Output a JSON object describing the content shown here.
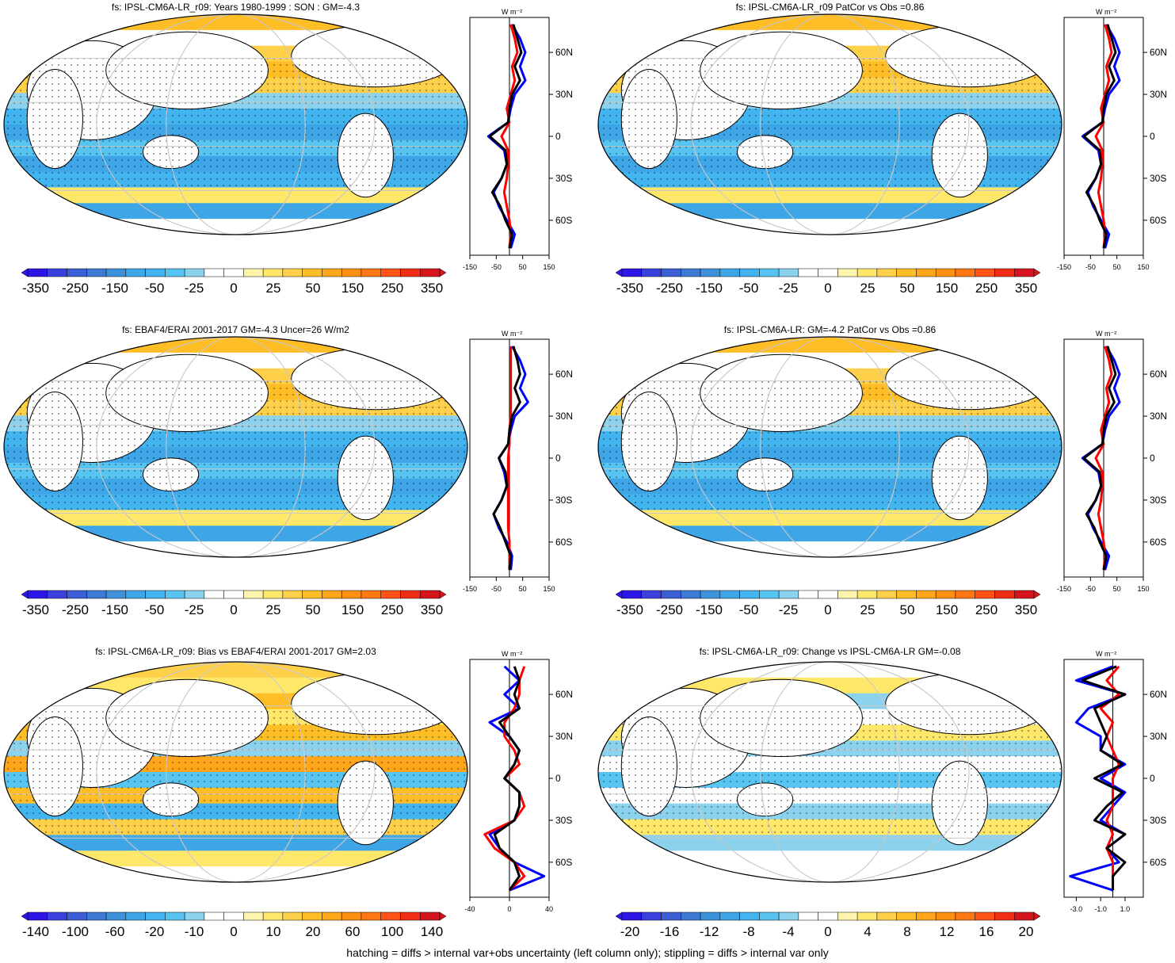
{
  "footer": "hatching = diffs > internal var+obs uncertainty (left column only); stippling = diffs > internal var only",
  "colors": {
    "blue_line": "#0000ff",
    "red_line": "#ff0000",
    "black_line": "#000000",
    "land": "#ffffff",
    "scale_main": [
      "#2d17e6",
      "#3a3fe0",
      "#3c5fd8",
      "#3d7ad6",
      "#3d92db",
      "#3ea6e6",
      "#42b4ef",
      "#57c4f2",
      "#8ad2ee",
      "#ffffff",
      "#ffffff",
      "#fff4ad",
      "#ffe76a",
      "#ffd14a",
      "#ffbd26",
      "#ffa61a",
      "#ff8f10",
      "#ff7814",
      "#ff5216",
      "#f02e16",
      "#d6141c"
    ]
  },
  "panels": [
    {
      "title": "fs: IPSL-CM6A-LR_r09: Years 1980-1999 : SON : GM=-4.3",
      "colorbar_labels": [
        "-350",
        "-250",
        "-150",
        "-50",
        "-25",
        "0",
        "25",
        "50",
        "150",
        "250",
        "350"
      ],
      "zonal_ticks": [
        "-150",
        "-50",
        "50",
        "150"
      ],
      "zonal_xlim": [
        -150,
        150
      ],
      "units": "W m⁻²",
      "lat_labels": [
        "60N",
        "30N",
        "0",
        "30S",
        "60S"
      ]
    },
    {
      "title": "fs: IPSL-CM6A-LR_r09 PatCor vs Obs =0.86",
      "colorbar_labels": [
        "-350",
        "-250",
        "-150",
        "-50",
        "-25",
        "0",
        "25",
        "50",
        "150",
        "250",
        "350"
      ],
      "zonal_ticks": [
        "-150",
        "-50",
        "50",
        "150"
      ],
      "zonal_xlim": [
        -150,
        150
      ],
      "units": "W m⁻²",
      "lat_labels": [
        "60N",
        "30N",
        "0",
        "30S",
        "60S"
      ]
    },
    {
      "title": "fs: EBAF4/ERAI 2001-2017 GM=-4.3 Uncer=26 W/m2",
      "colorbar_labels": [
        "-350",
        "-250",
        "-150",
        "-50",
        "-25",
        "0",
        "25",
        "50",
        "150",
        "250",
        "350"
      ],
      "zonal_ticks": [
        "-150",
        "-50",
        "50",
        "150"
      ],
      "zonal_xlim": [
        -150,
        150
      ],
      "units": "W m⁻²",
      "lat_labels": [
        "60N",
        "30N",
        "0",
        "30S",
        "60S"
      ]
    },
    {
      "title": "fs: IPSL-CM6A-LR: GM=-4.2 PatCor vs Obs =0.86",
      "colorbar_labels": [
        "-350",
        "-250",
        "-150",
        "-50",
        "-25",
        "0",
        "25",
        "50",
        "150",
        "250",
        "350"
      ],
      "zonal_ticks": [
        "-150",
        "-50",
        "50",
        "150"
      ],
      "zonal_xlim": [
        -150,
        150
      ],
      "units": "W m⁻²",
      "lat_labels": [
        "60N",
        "30N",
        "0",
        "30S",
        "60S"
      ]
    },
    {
      "title": "fs: IPSL-CM6A-LR_r09: Bias vs EBAF4/ERAI 2001-2017  GM=2.03",
      "colorbar_labels": [
        "-140",
        "-100",
        "-60",
        "-20",
        "-10",
        "0",
        "10",
        "20",
        "60",
        "100",
        "140"
      ],
      "zonal_ticks": [
        "-40",
        "0",
        "40"
      ],
      "zonal_xlim": [
        -40,
        40
      ],
      "units": "W m⁻²",
      "lat_labels": [
        "60N",
        "30N",
        "0",
        "30S",
        "60S"
      ]
    },
    {
      "title": "fs: IPSL-CM6A-LR_r09: Change vs IPSL-CM6A-LR GM=-0.08",
      "colorbar_labels": [
        "-20",
        "-16",
        "-12",
        "-8",
        "-4",
        "0",
        "4",
        "8",
        "12",
        "16",
        "20"
      ],
      "zonal_ticks": [
        "-3.0",
        "-1.0",
        "1.0"
      ],
      "zonal_xlim": [
        -4,
        2.5
      ],
      "units": "W m⁻²",
      "lat_labels": [
        "60N",
        "30N",
        "0",
        "30S",
        "60S"
      ]
    }
  ],
  "chart_data": [
    {
      "type": "heatmap",
      "title": "fs: IPSL-CM6A-LR_r09: Years 1980-1999 : SON : GM=-4.3",
      "zonal_mean_profile": {
        "lat": [
          80,
          70,
          60,
          50,
          40,
          30,
          20,
          10,
          0,
          -10,
          -20,
          -30,
          -40,
          -50,
          -60,
          -70,
          -80
        ],
        "series": [
          {
            "values": [
              10,
              40,
              60,
              40,
              60,
              20,
              5,
              -5,
              -80,
              -20,
              -10,
              -30,
              -60,
              -40,
              -10,
              20,
              5
            ]
          },
          {
            "values": [
              5,
              20,
              30,
              10,
              20,
              5,
              -10,
              0,
              -30,
              -5,
              -5,
              -10,
              -20,
              -10,
              0,
              5,
              0
            ]
          },
          {
            "values": [
              15,
              30,
              45,
              20,
              40,
              10,
              0,
              -5,
              -75,
              -15,
              -10,
              -30,
              -65,
              -35,
              -15,
              10,
              0
            ]
          }
        ]
      }
    },
    {
      "type": "heatmap",
      "title": "fs: IPSL-CM6A-LR_r09 PatCor vs Obs =0.86",
      "zonal_mean_profile": {
        "lat": [
          80,
          70,
          60,
          50,
          40,
          30,
          20,
          10,
          0,
          -10,
          -20,
          -30,
          -40,
          -50,
          -60,
          -70,
          -80
        ],
        "series": [
          {
            "values": [
              10,
              40,
              60,
              40,
              60,
              20,
              5,
              -5,
              -80,
              -20,
              -10,
              -30,
              -60,
              -40,
              -10,
              20,
              5
            ]
          },
          {
            "values": [
              5,
              20,
              30,
              10,
              20,
              5,
              -10,
              0,
              -30,
              -5,
              -5,
              -10,
              -20,
              -10,
              0,
              5,
              0
            ]
          },
          {
            "values": [
              15,
              30,
              45,
              20,
              40,
              10,
              0,
              -5,
              -75,
              -15,
              -10,
              -30,
              -65,
              -35,
              -15,
              10,
              0
            ]
          }
        ]
      }
    },
    {
      "type": "heatmap",
      "title": "fs: EBAF4/ERAI 2001-2017 GM=-4.3 Uncer=26 W/m2",
      "zonal_mean_profile": {
        "lat": [
          80,
          70,
          60,
          50,
          40,
          30,
          20,
          10,
          0,
          -10,
          -20,
          -30,
          -40,
          -50,
          -60,
          -70,
          -80
        ],
        "series": [
          {
            "values": [
              10,
              40,
              60,
              40,
              70,
              20,
              5,
              -5,
              -40,
              -20,
              -10,
              -30,
              -60,
              -40,
              -10,
              10,
              5
            ]
          },
          {
            "values": [
              5,
              5,
              5,
              5,
              5,
              5,
              0,
              0,
              -5,
              -5,
              -5,
              -5,
              -5,
              -5,
              0,
              0,
              0
            ]
          },
          {
            "values": [
              15,
              30,
              40,
              20,
              40,
              10,
              0,
              -5,
              -40,
              -15,
              -10,
              -30,
              -60,
              -35,
              -15,
              5,
              0
            ]
          }
        ]
      }
    },
    {
      "type": "heatmap",
      "title": "fs: IPSL-CM6A-LR: GM=-4.2 PatCor vs Obs =0.86",
      "zonal_mean_profile": {
        "lat": [
          80,
          70,
          60,
          50,
          40,
          30,
          20,
          10,
          0,
          -10,
          -20,
          -30,
          -40,
          -50,
          -60,
          -70,
          -80
        ],
        "series": [
          {
            "values": [
              10,
              40,
              60,
              40,
              60,
              20,
              5,
              -5,
              -80,
              -20,
              -10,
              -30,
              -60,
              -40,
              -10,
              20,
              5
            ]
          },
          {
            "values": [
              5,
              20,
              30,
              10,
              20,
              5,
              -10,
              0,
              -30,
              -5,
              -5,
              -10,
              -20,
              -10,
              0,
              5,
              0
            ]
          },
          {
            "values": [
              15,
              30,
              45,
              20,
              40,
              10,
              0,
              -5,
              -75,
              -15,
              -10,
              -30,
              -65,
              -35,
              -15,
              10,
              0
            ]
          }
        ]
      }
    },
    {
      "type": "heatmap",
      "title": "fs: IPSL-CM6A-LR_r09: Bias vs EBAF4/ERAI 2001-2017  GM=2.03",
      "zonal_mean_profile": {
        "lat": [
          80,
          70,
          60,
          50,
          40,
          30,
          20,
          10,
          0,
          -10,
          -20,
          -30,
          -40,
          -50,
          -60,
          -70,
          -80
        ],
        "series": [
          {
            "values": [
              -5,
              10,
              -5,
              10,
              -20,
              0,
              10,
              5,
              -5,
              10,
              10,
              5,
              -20,
              -10,
              5,
              35,
              0
            ]
          },
          {
            "values": [
              15,
              10,
              10,
              5,
              -5,
              -5,
              5,
              10,
              -5,
              10,
              15,
              5,
              -25,
              -15,
              5,
              15,
              0
            ]
          },
          {
            "values": [
              5,
              10,
              5,
              10,
              -10,
              0,
              10,
              5,
              -5,
              10,
              10,
              5,
              -15,
              -10,
              5,
              10,
              0
            ]
          }
        ]
      }
    },
    {
      "type": "heatmap",
      "title": "fs: IPSL-CM6A-LR_r09: Change vs IPSL-CM6A-LR GM=-0.08",
      "zonal_mean_profile": {
        "lat": [
          80,
          70,
          60,
          50,
          40,
          30,
          20,
          10,
          0,
          -10,
          -20,
          -30,
          -40,
          -50,
          -60,
          -70,
          -80
        ],
        "series": [
          {
            "values": [
              0,
              -3,
              1,
              -2,
              -3,
              -1,
              -1,
              1,
              -1,
              1,
              0,
              -1,
              1,
              -0.5,
              0.5,
              -3.5,
              0
            ]
          },
          {
            "values": [
              0.5,
              -0.5,
              0.5,
              -1,
              0,
              -0.5,
              0,
              0.5,
              0,
              0,
              0,
              -0.5,
              0,
              -0.5,
              0,
              0,
              0
            ]
          },
          {
            "values": [
              0.3,
              -2.5,
              1,
              -1.5,
              -1,
              -0.5,
              -1,
              0.8,
              -1.5,
              0.8,
              -0.5,
              -1.5,
              1,
              -0.5,
              1,
              0,
              0
            ]
          }
        ]
      }
    }
  ]
}
